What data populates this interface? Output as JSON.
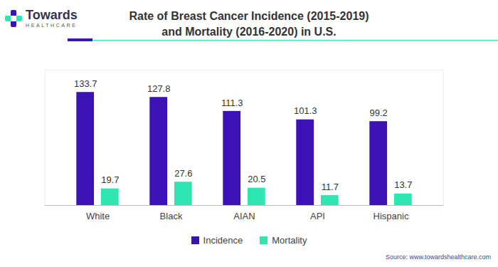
{
  "chart_data": {
    "type": "bar",
    "title": "Rate of Breast Cancer Incidence (2015-2019)\nand Mortality (2016-2020) in U.S.",
    "brand": [
      "Towards",
      "HEALTHCARE"
    ],
    "source": "Source: www.towardshealthcare.com",
    "categories": [
      "White",
      "Black",
      "AIAN",
      "API",
      "Hispanic"
    ],
    "series": [
      {
        "name": "Incidence",
        "color": "#3a12b5",
        "values": [
          133.7,
          127.8,
          111.3,
          101.3,
          99.2
        ]
      },
      {
        "name": "Mortality",
        "color": "#2ee6b0",
        "values": [
          19.7,
          27.6,
          20.5,
          11.7,
          13.7
        ]
      }
    ],
    "ylim": [
      0,
      160
    ],
    "yticks": [],
    "grid": false,
    "legend": "bottom",
    "data_labels": true,
    "tick_labels": "x"
  }
}
